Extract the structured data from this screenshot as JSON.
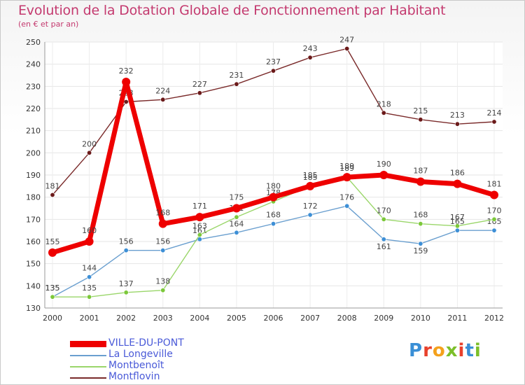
{
  "title": "Evolution de la Dotation Globale de Fonctionnement par Habitant",
  "subtitle": "(en € et par an)",
  "logo": {
    "letters": [
      "P",
      "r",
      "o",
      "x",
      "i",
      "t",
      "i"
    ],
    "colors": [
      "#3a8fd6",
      "#e8412c",
      "#f4a11c",
      "#7cbf2a",
      "#e8412c",
      "#3a8fd6",
      "#7cbf2a"
    ]
  },
  "chart_data": {
    "type": "line",
    "title": "Evolution de la Dotation Globale de Fonctionnement par Habitant",
    "subtitle": "(en € et par an)",
    "x": [
      "2000",
      "2001",
      "2002",
      "2003",
      "2004",
      "2005",
      "2006",
      "2007",
      "2008",
      "2009",
      "2010",
      "2011",
      "2012"
    ],
    "ylim": [
      130,
      250
    ],
    "yticks": [
      130,
      140,
      150,
      160,
      170,
      180,
      190,
      200,
      210,
      220,
      230,
      240,
      250
    ],
    "grid": true,
    "series": [
      {
        "name": "Montflovin",
        "color": "#7a2a2a",
        "dot": "#6b1a1a",
        "values": [
          181,
          200,
          223,
          224,
          227,
          231,
          237,
          243,
          247,
          218,
          215,
          213,
          214
        ]
      },
      {
        "name": "La Longeville",
        "color": "#6a9fcf",
        "dot": "#3d8fd6",
        "values": [
          135,
          144,
          156,
          156,
          161,
          164,
          168,
          172,
          176,
          161,
          159,
          165,
          165
        ]
      },
      {
        "name": "Montbenoît",
        "color": "#9ad66a",
        "dot": "#7cc83a",
        "values": [
          135,
          135,
          137,
          138,
          163,
          171,
          178,
          185,
          189,
          170,
          168,
          167,
          170
        ]
      },
      {
        "name": "VILLE-DU-PONT",
        "color": "#ee0000",
        "dot": "#ee0000",
        "values": [
          155,
          160,
          232,
          168,
          171,
          175,
          180,
          185,
          189,
          190,
          187,
          186,
          181
        ]
      }
    ],
    "legend_order": [
      "VILLE-DU-PONT",
      "La Longeville",
      "Montbenoît",
      "Montflovin"
    ]
  }
}
